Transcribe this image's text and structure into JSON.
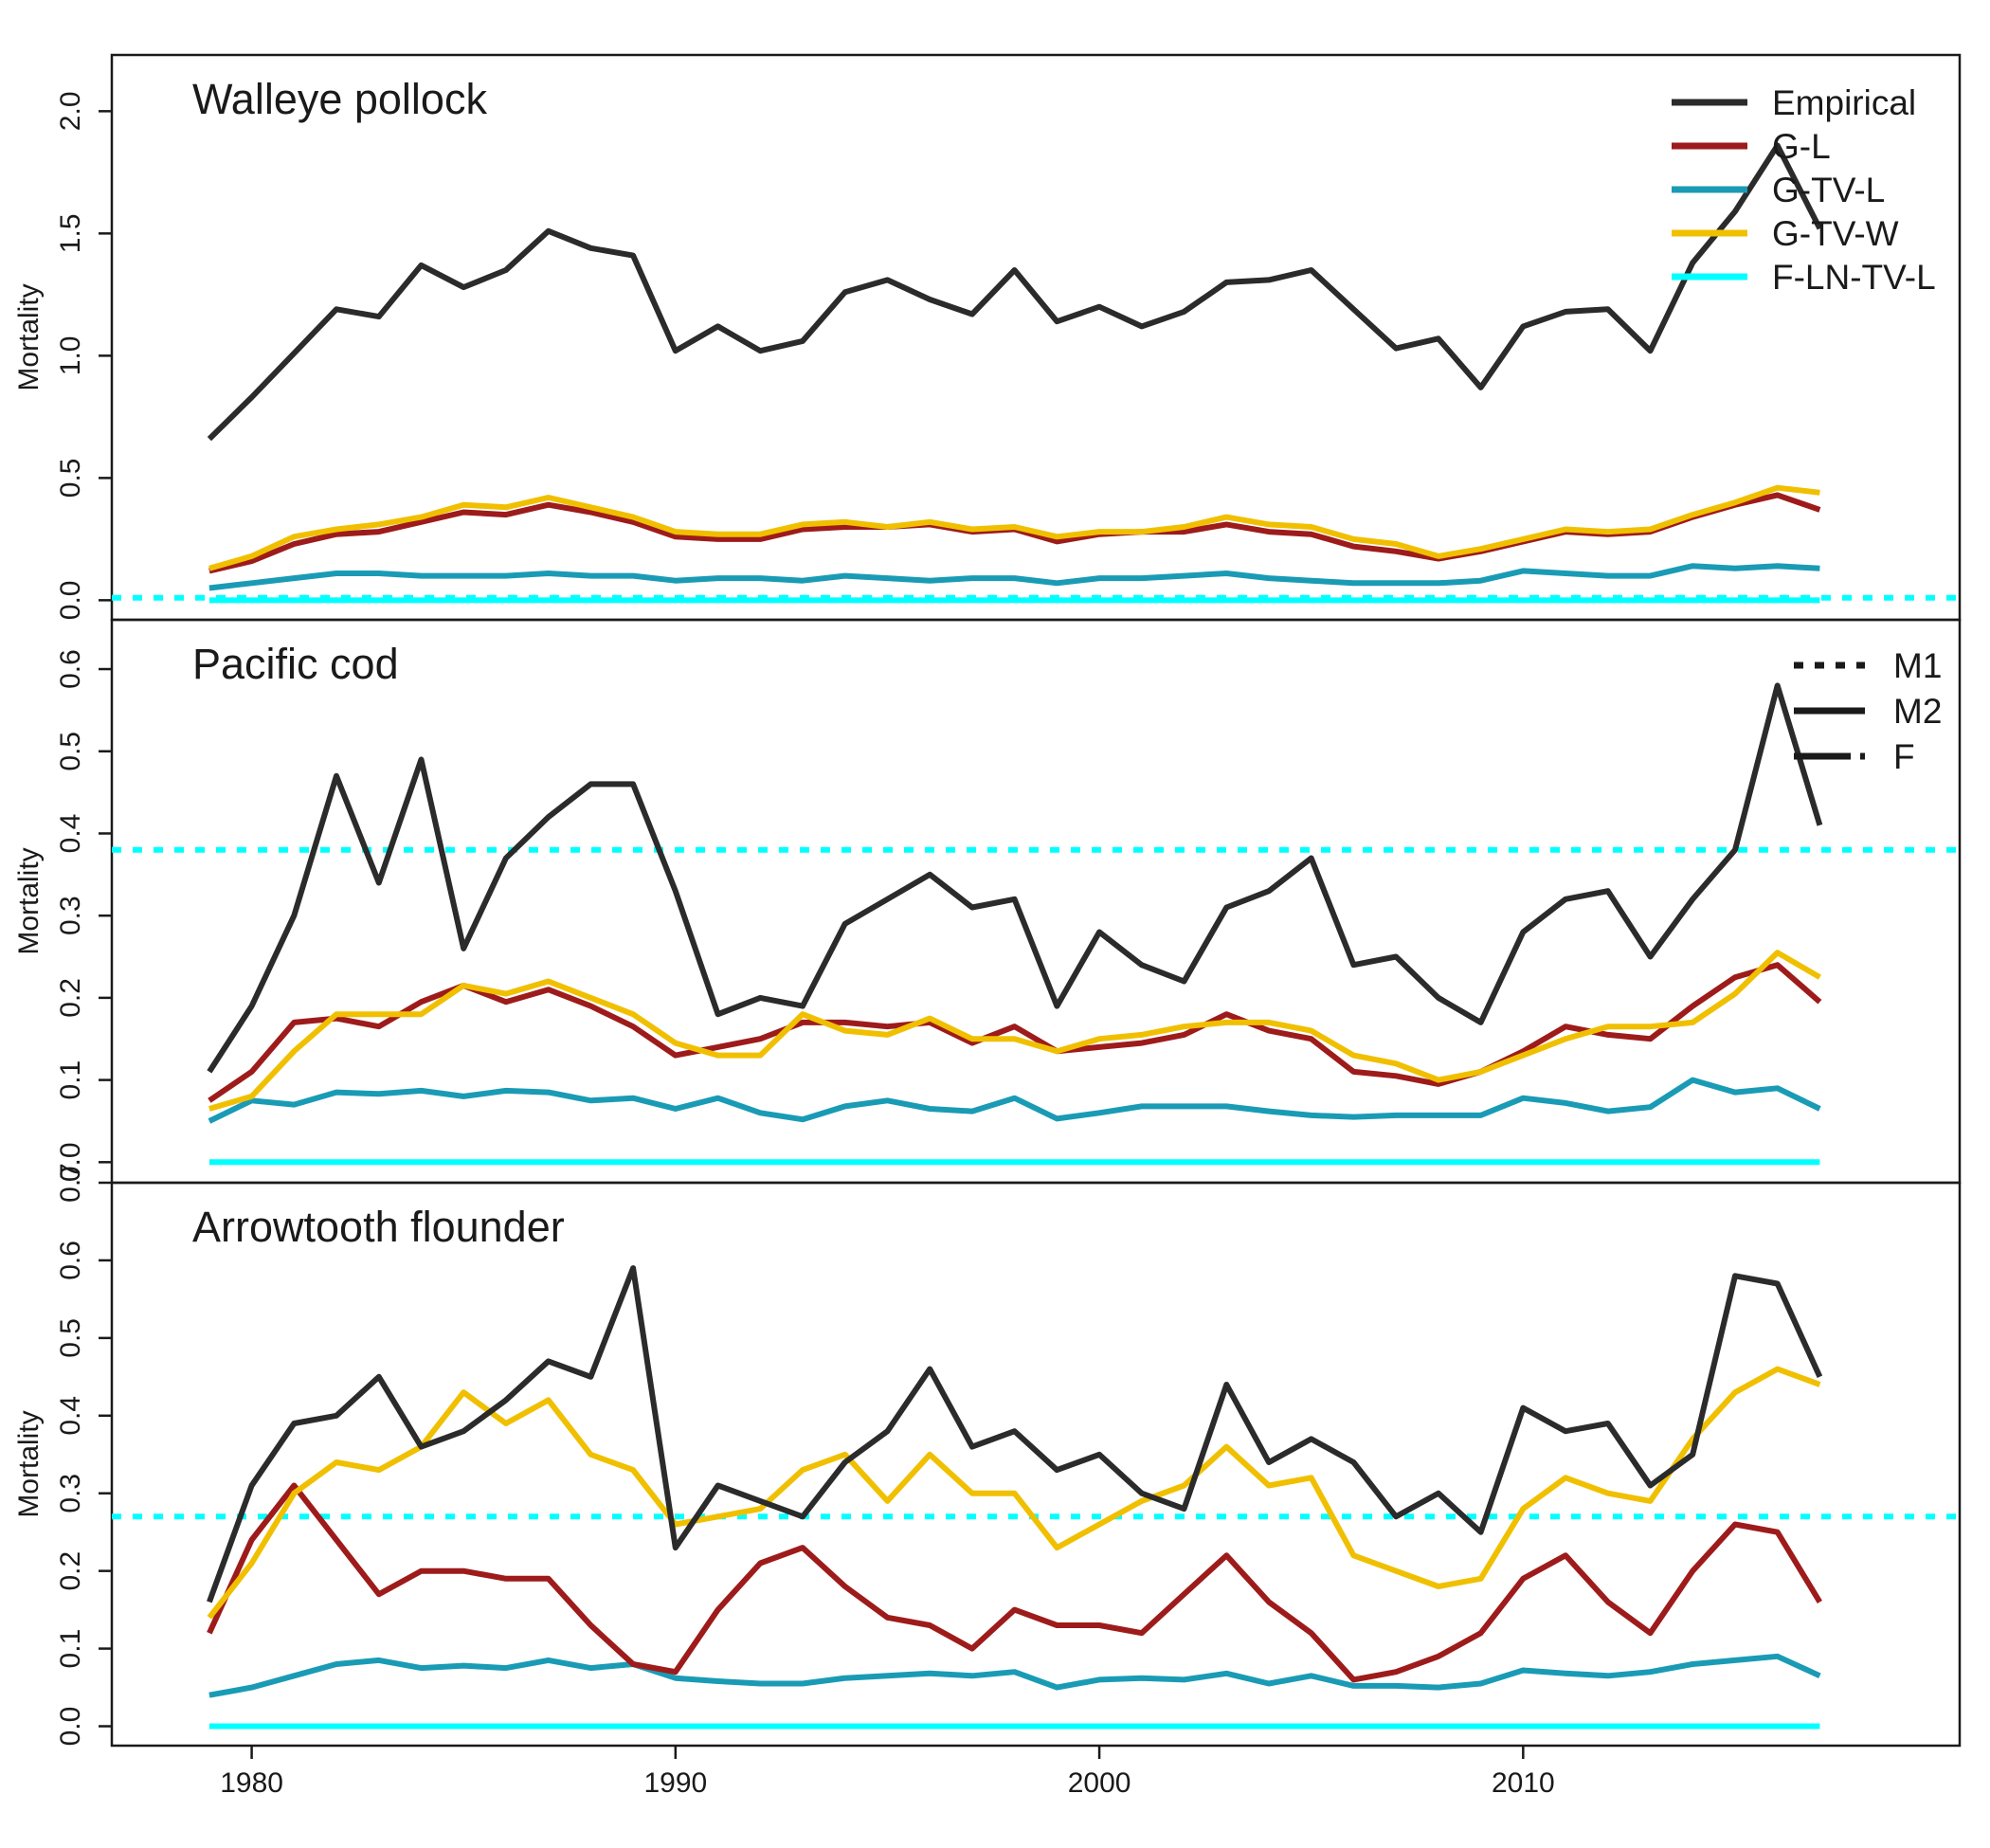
{
  "colors": {
    "Empirical": "#2b2b2b",
    "G-L": "#9e1b1b",
    "G-TV-L": "#1a9bb5",
    "G-TV-W": "#f0c000",
    "F-LN-TV-L": "#00ffff",
    "axis": "#1a1a1a"
  },
  "chart_data": [
    {
      "type": "line",
      "title": "Walleye pollock",
      "ylabel": "Mortality",
      "ylim": [
        -0.08,
        2.23
      ],
      "yticks": [
        0.0,
        0.5,
        1.0,
        1.5,
        2.0
      ],
      "ytick_labels": [
        "0.0",
        "0.5",
        "1.0",
        "1.5",
        "2.0"
      ],
      "xlim": [
        1976.7,
        2020.3
      ],
      "legend_position": "top-right",
      "legend": [
        {
          "label": "Empirical",
          "key": "Empirical"
        },
        {
          "label": "G-L",
          "key": "G-L"
        },
        {
          "label": "G-TV-L",
          "key": "G-TV-L"
        },
        {
          "label": "G-TV-W",
          "key": "G-TV-W"
        },
        {
          "label": "F-LN-TV-L",
          "key": "F-LN-TV-L"
        }
      ],
      "m1_line": 0.01,
      "x": [
        1979,
        1980,
        1981,
        1982,
        1983,
        1984,
        1985,
        1986,
        1987,
        1988,
        1989,
        1990,
        1991,
        1992,
        1993,
        1994,
        1995,
        1996,
        1997,
        1998,
        1999,
        2000,
        2001,
        2002,
        2003,
        2004,
        2005,
        2006,
        2007,
        2008,
        2009,
        2010,
        2011,
        2012,
        2013,
        2014,
        2015,
        2016,
        2017
      ],
      "series": [
        {
          "name": "Empirical",
          "key": "Empirical",
          "values": [
            0.66,
            0.83,
            1.01,
            1.19,
            1.16,
            1.37,
            1.28,
            1.35,
            1.51,
            1.44,
            1.41,
            1.02,
            1.12,
            1.02,
            1.06,
            1.26,
            1.31,
            1.23,
            1.17,
            1.35,
            1.14,
            1.2,
            1.12,
            1.18,
            1.3,
            1.31,
            1.35,
            1.19,
            1.03,
            1.07,
            0.87,
            1.12,
            1.18,
            1.19,
            1.02,
            1.38,
            1.59,
            1.86,
            1.52
          ]
        },
        {
          "name": "G-L",
          "key": "G-L",
          "values": [
            0.12,
            0.16,
            0.23,
            0.27,
            0.28,
            0.32,
            0.36,
            0.35,
            0.39,
            0.36,
            0.32,
            0.26,
            0.25,
            0.25,
            0.29,
            0.3,
            0.3,
            0.31,
            0.28,
            0.29,
            0.24,
            0.27,
            0.28,
            0.28,
            0.31,
            0.28,
            0.27,
            0.22,
            0.2,
            0.17,
            0.2,
            0.24,
            0.28,
            0.27,
            0.28,
            0.34,
            0.39,
            0.43,
            0.37
          ]
        },
        {
          "name": "G-TV-L",
          "key": "G-TV-L",
          "values": [
            0.05,
            0.07,
            0.09,
            0.11,
            0.11,
            0.1,
            0.1,
            0.1,
            0.11,
            0.1,
            0.1,
            0.08,
            0.09,
            0.09,
            0.08,
            0.1,
            0.09,
            0.08,
            0.09,
            0.09,
            0.07,
            0.09,
            0.09,
            0.1,
            0.11,
            0.09,
            0.08,
            0.07,
            0.07,
            0.07,
            0.08,
            0.12,
            0.11,
            0.1,
            0.1,
            0.14,
            0.13,
            0.14,
            0.13
          ]
        },
        {
          "name": "G-TV-W",
          "key": "G-TV-W",
          "values": [
            0.13,
            0.18,
            0.26,
            0.29,
            0.31,
            0.34,
            0.39,
            0.38,
            0.42,
            0.38,
            0.34,
            0.28,
            0.27,
            0.27,
            0.31,
            0.32,
            0.3,
            0.32,
            0.29,
            0.3,
            0.26,
            0.28,
            0.28,
            0.3,
            0.34,
            0.31,
            0.3,
            0.25,
            0.23,
            0.18,
            0.21,
            0.25,
            0.29,
            0.28,
            0.29,
            0.35,
            0.4,
            0.46,
            0.44
          ]
        },
        {
          "name": "F-LN-TV-L",
          "key": "F-LN-TV-L",
          "values": [
            0,
            0,
            0,
            0,
            0,
            0,
            0,
            0,
            0,
            0,
            0,
            0,
            0,
            0,
            0,
            0,
            0,
            0,
            0,
            0,
            0,
            0,
            0,
            0,
            0,
            0,
            0,
            0,
            0,
            0,
            0,
            0,
            0,
            0,
            0,
            0,
            0,
            0,
            0
          ]
        }
      ]
    },
    {
      "type": "line",
      "title": "Pacific cod",
      "ylabel": "Mortality",
      "ylim": [
        -0.025,
        0.66
      ],
      "yticks": [
        0.0,
        0.1,
        0.2,
        0.3,
        0.4,
        0.5,
        0.6
      ],
      "ytick_labels": [
        "0.0",
        "0.1",
        "0.2",
        "0.3",
        "0.4",
        "0.5",
        "0.6"
      ],
      "xlim": [
        1976.7,
        2020.3
      ],
      "legend_position": "top-right",
      "legend": [
        {
          "label": "M1",
          "style": "dotted"
        },
        {
          "label": "M2",
          "style": "solid"
        },
        {
          "label": "F",
          "style": "dashed"
        }
      ],
      "m1_line": 0.38,
      "x": [
        1979,
        1980,
        1981,
        1982,
        1983,
        1984,
        1985,
        1986,
        1987,
        1988,
        1989,
        1990,
        1991,
        1992,
        1993,
        1994,
        1995,
        1996,
        1997,
        1998,
        1999,
        2000,
        2001,
        2002,
        2003,
        2004,
        2005,
        2006,
        2007,
        2008,
        2009,
        2010,
        2011,
        2012,
        2013,
        2014,
        2015,
        2016,
        2017
      ],
      "series": [
        {
          "name": "Empirical",
          "key": "Empirical",
          "values": [
            0.11,
            0.19,
            0.3,
            0.47,
            0.34,
            0.49,
            0.26,
            0.37,
            0.42,
            0.46,
            0.46,
            0.33,
            0.18,
            0.2,
            0.19,
            0.29,
            0.32,
            0.35,
            0.31,
            0.32,
            0.19,
            0.28,
            0.24,
            0.22,
            0.31,
            0.33,
            0.37,
            0.24,
            0.25,
            0.2,
            0.17,
            0.28,
            0.32,
            0.33,
            0.25,
            0.32,
            0.38,
            0.58,
            0.41
          ]
        },
        {
          "name": "G-L",
          "key": "G-L",
          "values": [
            0.075,
            0.11,
            0.17,
            0.175,
            0.165,
            0.195,
            0.215,
            0.195,
            0.21,
            0.19,
            0.165,
            0.13,
            0.14,
            0.15,
            0.17,
            0.17,
            0.165,
            0.17,
            0.145,
            0.165,
            0.135,
            0.14,
            0.145,
            0.155,
            0.18,
            0.16,
            0.15,
            0.11,
            0.105,
            0.095,
            0.11,
            0.135,
            0.165,
            0.155,
            0.15,
            0.19,
            0.225,
            0.24,
            0.195
          ]
        },
        {
          "name": "G-TV-L",
          "key": "G-TV-L",
          "values": [
            0.05,
            0.075,
            0.07,
            0.085,
            0.083,
            0.087,
            0.08,
            0.087,
            0.085,
            0.075,
            0.078,
            0.065,
            0.078,
            0.06,
            0.052,
            0.068,
            0.075,
            0.065,
            0.062,
            0.078,
            0.053,
            0.06,
            0.068,
            0.068,
            0.068,
            0.062,
            0.057,
            0.055,
            0.057,
            0.057,
            0.057,
            0.078,
            0.072,
            0.062,
            0.067,
            0.1,
            0.085,
            0.09,
            0.065
          ]
        },
        {
          "name": "G-TV-W",
          "key": "G-TV-W",
          "values": [
            0.065,
            0.08,
            0.135,
            0.18,
            0.18,
            0.18,
            0.215,
            0.205,
            0.22,
            0.2,
            0.18,
            0.145,
            0.13,
            0.13,
            0.18,
            0.16,
            0.155,
            0.175,
            0.15,
            0.15,
            0.135,
            0.15,
            0.155,
            0.165,
            0.17,
            0.17,
            0.16,
            0.13,
            0.12,
            0.1,
            0.11,
            0.13,
            0.15,
            0.165,
            0.165,
            0.17,
            0.205,
            0.255,
            0.225
          ]
        },
        {
          "name": "F-LN-TV-L",
          "key": "F-LN-TV-L",
          "values": [
            0,
            0,
            0,
            0,
            0,
            0,
            0,
            0,
            0,
            0,
            0,
            0,
            0,
            0,
            0,
            0,
            0,
            0,
            0,
            0,
            0,
            0,
            0,
            0,
            0,
            0,
            0,
            0,
            0,
            0,
            0,
            0,
            0,
            0,
            0,
            0,
            0,
            0,
            0
          ]
        }
      ]
    },
    {
      "type": "line",
      "title": "Arrowtooth flounder",
      "ylabel": "Mortality",
      "xlabel": "",
      "ylim": [
        -0.025,
        0.7
      ],
      "yticks": [
        0.0,
        0.1,
        0.2,
        0.3,
        0.4,
        0.5,
        0.6,
        0.7
      ],
      "ytick_labels": [
        "0.0",
        "0.1",
        "0.2",
        "0.3",
        "0.4",
        "0.5",
        "0.6",
        "0.7"
      ],
      "xlim": [
        1976.7,
        2020.3
      ],
      "xticks": [
        1980,
        1990,
        2000,
        2010
      ],
      "xtick_labels": [
        "1980",
        "1990",
        "2000",
        "2010"
      ],
      "m1_line": 0.27,
      "x": [
        1979,
        1980,
        1981,
        1982,
        1983,
        1984,
        1985,
        1986,
        1987,
        1988,
        1989,
        1990,
        1991,
        1992,
        1993,
        1994,
        1995,
        1996,
        1997,
        1998,
        1999,
        2000,
        2001,
        2002,
        2003,
        2004,
        2005,
        2006,
        2007,
        2008,
        2009,
        2010,
        2011,
        2012,
        2013,
        2014,
        2015,
        2016,
        2017
      ],
      "series": [
        {
          "name": "Empirical",
          "key": "Empirical",
          "values": [
            0.16,
            0.31,
            0.39,
            0.4,
            0.45,
            0.36,
            0.38,
            0.42,
            0.47,
            0.45,
            0.59,
            0.23,
            0.31,
            0.29,
            0.27,
            0.34,
            0.38,
            0.46,
            0.36,
            0.38,
            0.33,
            0.35,
            0.3,
            0.28,
            0.44,
            0.34,
            0.37,
            0.34,
            0.27,
            0.3,
            0.25,
            0.41,
            0.38,
            0.39,
            0.31,
            0.35,
            0.58,
            0.57,
            0.45
          ]
        },
        {
          "name": "G-L",
          "key": "G-L",
          "values": [
            0.12,
            0.24,
            0.31,
            0.24,
            0.17,
            0.2,
            0.2,
            0.19,
            0.19,
            0.13,
            0.08,
            0.07,
            0.15,
            0.21,
            0.23,
            0.18,
            0.14,
            0.13,
            0.1,
            0.15,
            0.13,
            0.13,
            0.12,
            0.17,
            0.22,
            0.16,
            0.12,
            0.06,
            0.07,
            0.09,
            0.12,
            0.19,
            0.22,
            0.16,
            0.12,
            0.2,
            0.26,
            0.25,
            0.16
          ]
        },
        {
          "name": "G-TV-L",
          "key": "G-TV-L",
          "values": [
            0.04,
            0.05,
            0.065,
            0.08,
            0.085,
            0.075,
            0.078,
            0.075,
            0.085,
            0.075,
            0.08,
            0.062,
            0.058,
            0.055,
            0.055,
            0.062,
            0.065,
            0.068,
            0.065,
            0.07,
            0.05,
            0.06,
            0.062,
            0.06,
            0.068,
            0.055,
            0.065,
            0.052,
            0.052,
            0.05,
            0.055,
            0.072,
            0.068,
            0.065,
            0.07,
            0.08,
            0.085,
            0.09,
            0.065
          ]
        },
        {
          "name": "G-TV-W",
          "key": "G-TV-W",
          "values": [
            0.14,
            0.21,
            0.3,
            0.34,
            0.33,
            0.36,
            0.43,
            0.39,
            0.42,
            0.35,
            0.33,
            0.26,
            0.27,
            0.28,
            0.33,
            0.35,
            0.29,
            0.35,
            0.3,
            0.3,
            0.23,
            0.26,
            0.29,
            0.31,
            0.36,
            0.31,
            0.32,
            0.22,
            0.2,
            0.18,
            0.19,
            0.28,
            0.32,
            0.3,
            0.29,
            0.37,
            0.43,
            0.46,
            0.44
          ]
        },
        {
          "name": "F-LN-TV-L",
          "key": "F-LN-TV-L",
          "values": [
            0,
            0,
            0,
            0,
            0,
            0,
            0,
            0,
            0,
            0,
            0,
            0,
            0,
            0,
            0,
            0,
            0,
            0,
            0,
            0,
            0,
            0,
            0,
            0,
            0,
            0,
            0,
            0,
            0,
            0,
            0,
            0,
            0,
            0,
            0,
            0,
            0,
            0,
            0
          ]
        }
      ]
    }
  ]
}
